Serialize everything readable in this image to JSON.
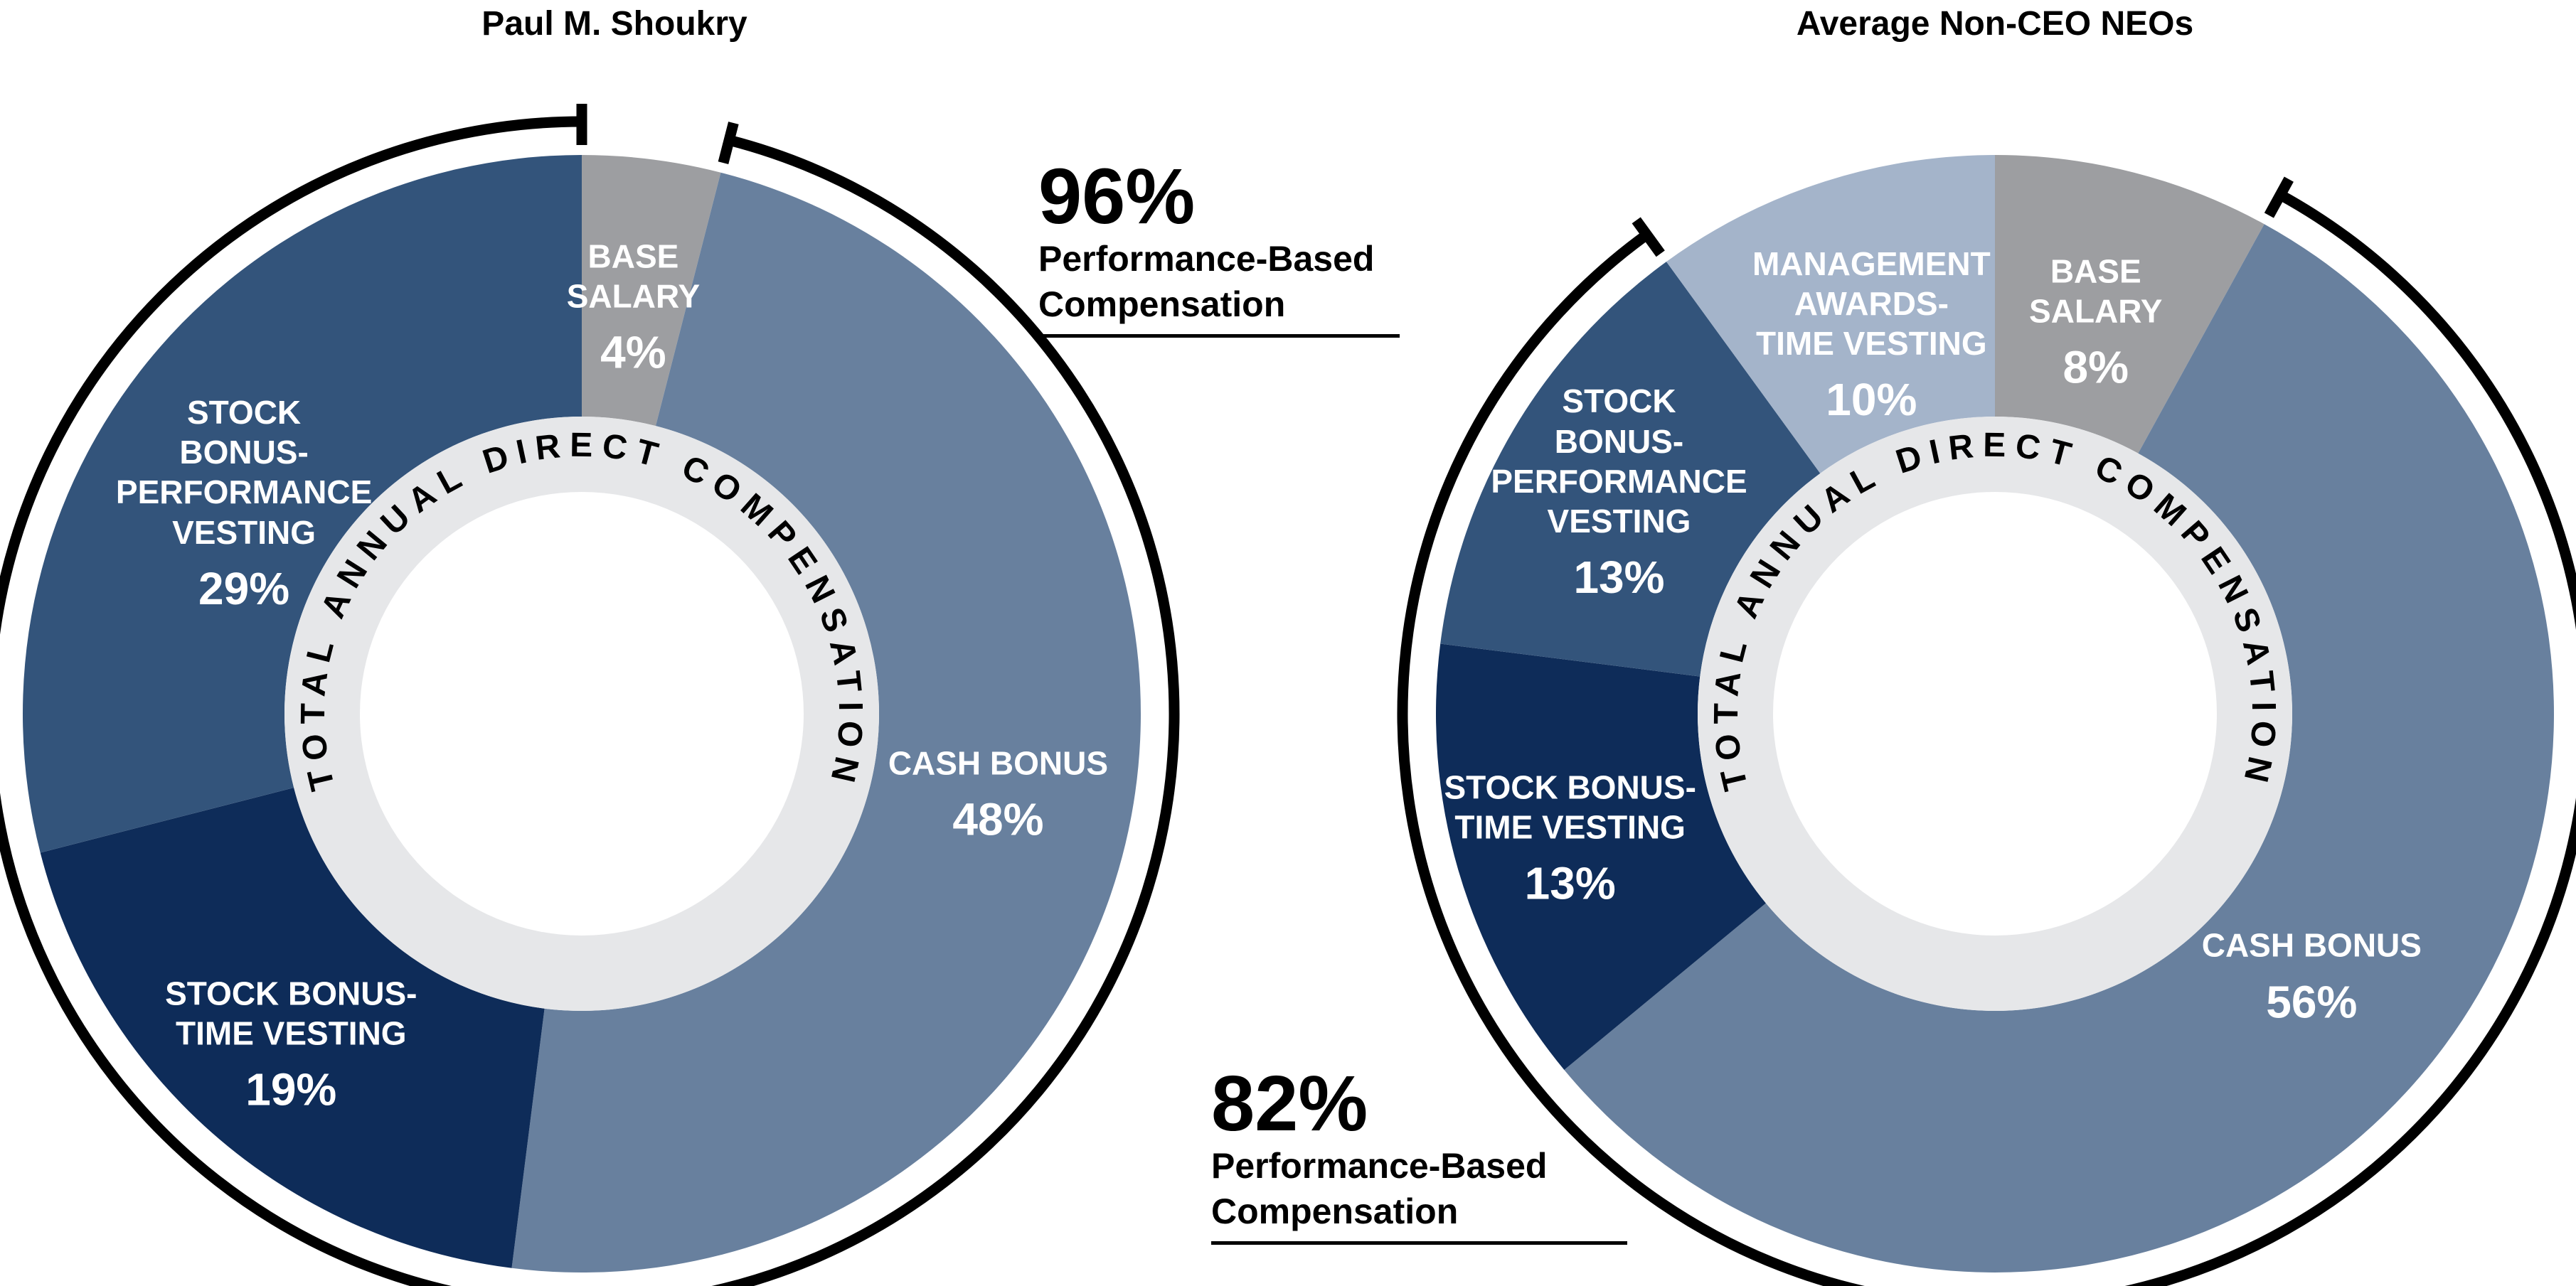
{
  "page": {
    "background": "#ffffff"
  },
  "colors": {
    "ring": "#e6e7e9",
    "ring_text": "#000000",
    "center": "#ffffff",
    "bracket": "#000000"
  },
  "chart_data": [
    {
      "type": "pie",
      "subtype": "donut",
      "title": "Paul M. Shoukry",
      "ring_label": "TOTAL ANNUAL DIRECT COMPENSATION",
      "units": "%",
      "slices": [
        {
          "name": "Base Salary",
          "label_lines": [
            "BASE",
            "SALARY"
          ],
          "pct": "4%",
          "value": 4,
          "color": "#9d9ea1",
          "text_color": "#ffffff"
        },
        {
          "name": "Cash Bonus",
          "label_lines": [
            "CASH BONUS"
          ],
          "pct": "48%",
          "value": 48,
          "color": "#68809e",
          "text_color": "#ffffff"
        },
        {
          "name": "Stock Bonus - Time Vesting",
          "label_lines": [
            "STOCK BONUS-",
            "TIME VESTING"
          ],
          "pct": "19%",
          "value": 19,
          "color": "#0e2c59",
          "text_color": "#ffffff"
        },
        {
          "name": "Stock Bonus - Performance Vesting",
          "label_lines": [
            "STOCK",
            "BONUS-",
            "PERFORMANCE",
            "VESTING"
          ],
          "pct": "29%",
          "value": 29,
          "color": "#33547b",
          "text_color": "#ffffff"
        }
      ],
      "bracket": {
        "pct": "96%",
        "label_lines": [
          "Performance-Based",
          "Compensation"
        ],
        "from_value": 4,
        "to_value": 100
      }
    },
    {
      "type": "pie",
      "subtype": "donut",
      "title": "Average Non-CEO NEOs",
      "ring_label": "TOTAL ANNUAL DIRECT COMPENSATION",
      "units": "%",
      "slices": [
        {
          "name": "Base Salary",
          "label_lines": [
            "BASE",
            "SALARY"
          ],
          "pct": "8%",
          "value": 8,
          "color": "#9d9ea1",
          "text_color": "#ffffff"
        },
        {
          "name": "Cash Bonus",
          "label_lines": [
            "CASH BONUS"
          ],
          "pct": "56%",
          "value": 56,
          "color": "#68809e",
          "text_color": "#ffffff"
        },
        {
          "name": "Stock Bonus - Time Vesting",
          "label_lines": [
            "STOCK BONUS-",
            "TIME VESTING"
          ],
          "pct": "13%",
          "value": 13,
          "color": "#0e2c59",
          "text_color": "#ffffff"
        },
        {
          "name": "Stock Bonus - Performance Vesting",
          "label_lines": [
            "STOCK",
            "BONUS-",
            "PERFORMANCE",
            "VESTING"
          ],
          "pct": "13%",
          "value": 13,
          "color": "#33547b",
          "text_color": "#ffffff"
        },
        {
          "name": "Management Awards - Time Vesting",
          "label_lines": [
            "MANAGEMENT",
            "AWARDS-",
            "TIME VESTING"
          ],
          "pct": "10%",
          "value": 10,
          "color": "#a4b4ca",
          "text_color": "#ffffff"
        }
      ],
      "bracket": {
        "pct": "82%",
        "label_lines": [
          "Performance-Based",
          "Compensation"
        ],
        "from_value": 8,
        "to_value": 90
      }
    }
  ]
}
